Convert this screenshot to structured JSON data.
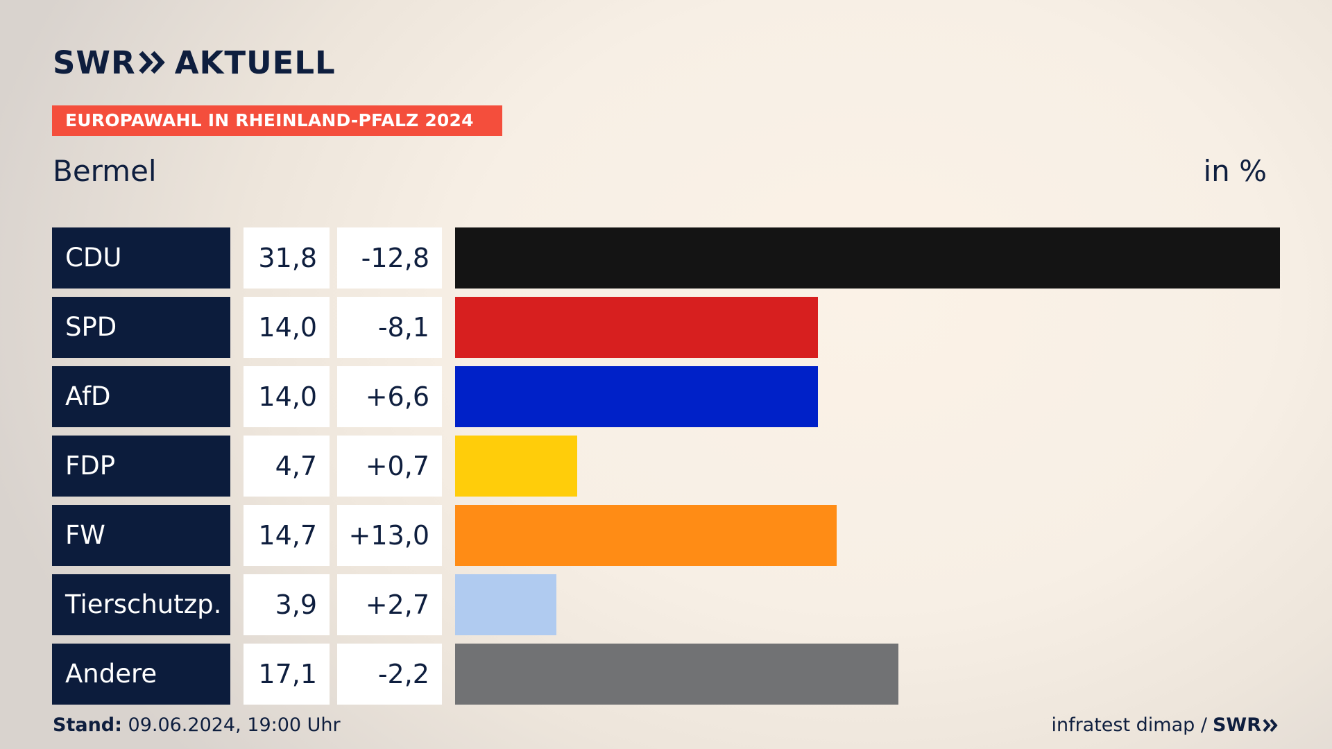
{
  "header": {
    "brand_swr": "SWR",
    "brand_aktuell": "AKTUELL",
    "banner": "EUROPAWAHL IN RHEINLAND-PFALZ 2024",
    "region": "Bermel",
    "unit": "in %"
  },
  "colors": {
    "navy": "#0c1c3c",
    "banner": "#f44e3c"
  },
  "chart_data": {
    "type": "bar",
    "orientation": "horizontal",
    "categories": [
      "CDU",
      "SPD",
      "AfD",
      "FDP",
      "FW",
      "Tierschutzp.",
      "Andere"
    ],
    "values": [
      31.8,
      14.0,
      14.0,
      4.7,
      14.7,
      3.9,
      17.1
    ],
    "value_labels": [
      "31,8",
      "14,0",
      "14,0",
      "4,7",
      "14,7",
      "3,9",
      "17,1"
    ],
    "diff_labels": [
      "-12,8",
      "-8,1",
      "+6,6",
      "+0,7",
      "+13,0",
      "+2,7",
      "-2,2"
    ],
    "bar_colors": [
      "#141414",
      "#d71f1f",
      "#0021c8",
      "#ffcd0a",
      "#ff8c15",
      "#b0cbf0",
      "#717274"
    ],
    "xlim": [
      0,
      31.8
    ],
    "grid": false
  },
  "footer": {
    "stand_label": "Stand:",
    "stand_value": "09.06.2024, 19:00 Uhr",
    "source": "infratest dimap /",
    "source_brand": "SWR"
  }
}
